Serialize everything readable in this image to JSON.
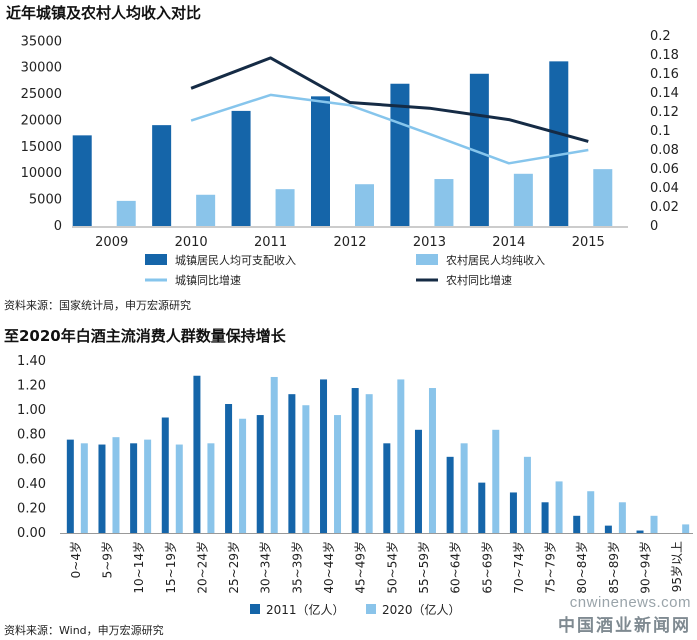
{
  "chart_data": [
    {
      "type": "bar",
      "title": "近年城镇及农村人均收入对比",
      "source": "资料来源：国家统计局，申万宏源研究",
      "categories": [
        "2009",
        "2010",
        "2011",
        "2012",
        "2013",
        "2014",
        "2015"
      ],
      "series": [
        {
          "name": "城镇居民人均可支配收入",
          "type": "bar",
          "axis": "left",
          "color": "#1565a9",
          "values": [
            17175,
            19109,
            21810,
            24565,
            26955,
            28844,
            31195
          ]
        },
        {
          "name": "农村居民人均纯收入",
          "type": "bar",
          "axis": "left",
          "color": "#8ac4ea",
          "values": [
            4761,
            5919,
            6977,
            7917,
            8896,
            9892,
            10772
          ]
        },
        {
          "name": "城镇同比增速",
          "type": "line",
          "axis": "right",
          "color": "#86c5ec",
          "values": [
            null,
            0.111,
            0.138,
            0.127,
            0.097,
            0.066,
            0.08
          ]
        },
        {
          "name": "农村同比增速",
          "type": "line",
          "axis": "right",
          "color": "#152b45",
          "values": [
            null,
            0.145,
            0.177,
            0.13,
            0.124,
            0.112,
            0.089
          ]
        }
      ],
      "y_left": {
        "min": 0,
        "max": 36000,
        "ticks": [
          "0",
          "5000",
          "10000",
          "15000",
          "20000",
          "25000",
          "30000",
          "35000"
        ],
        "tick_values": [
          0,
          5000,
          10000,
          15000,
          20000,
          25000,
          30000,
          35000
        ]
      },
      "y_right": {
        "min": 0,
        "max": 0.2,
        "ticks": [
          "0",
          "0.02",
          "0.04",
          "0.06",
          "0.08",
          "0.1",
          "0.12",
          "0.14",
          "0.16",
          "0.18",
          "0.2"
        ],
        "tick_values": [
          0,
          0.02,
          0.04,
          0.06,
          0.08,
          0.1,
          0.12,
          0.14,
          0.16,
          0.18,
          0.2
        ]
      },
      "grid": false,
      "legend": "bottom"
    },
    {
      "type": "bar",
      "title": "至2020年白酒主流消费人群数量保持增长",
      "source": "资料来源：Wind，申万宏源研究",
      "categories": [
        "0~4岁",
        "5~9岁",
        "10~14岁",
        "15~19岁",
        "20~24岁",
        "25~29岁",
        "30~34岁",
        "35~39岁",
        "40~44岁",
        "45~49岁",
        "50~54岁",
        "55~59岁",
        "60~64岁",
        "65~69岁",
        "70~74岁",
        "75~79岁",
        "80~84岁",
        "85~89岁",
        "90~94岁",
        "95岁以上"
      ],
      "series": [
        {
          "name": "2011（亿人）",
          "color": "#1565a9",
          "values": [
            0.76,
            0.72,
            0.73,
            0.94,
            1.28,
            1.05,
            0.96,
            1.13,
            1.25,
            1.18,
            0.73,
            0.84,
            0.62,
            0.41,
            0.33,
            0.25,
            0.14,
            0.06,
            0.02,
            0.0
          ]
        },
        {
          "name": "2020（亿人）",
          "color": "#8ac4ea",
          "values": [
            0.73,
            0.78,
            0.76,
            0.72,
            0.73,
            0.93,
            1.27,
            1.04,
            0.96,
            1.13,
            1.25,
            1.18,
            0.73,
            0.84,
            0.62,
            0.42,
            0.34,
            0.25,
            0.14,
            0.07
          ]
        }
      ],
      "y": {
        "min": 0,
        "max": 1.4,
        "ticks": [
          "0.00",
          "0.20",
          "0.40",
          "0.60",
          "0.80",
          "1.00",
          "1.20",
          "1.40"
        ],
        "tick_values": [
          0,
          0.2,
          0.4,
          0.6,
          0.8,
          1.0,
          1.2,
          1.4
        ]
      },
      "grid": false,
      "legend": "bottom"
    }
  ],
  "watermark": {
    "url": "cnwinenews.com",
    "name": "中国酒业新闻网"
  }
}
